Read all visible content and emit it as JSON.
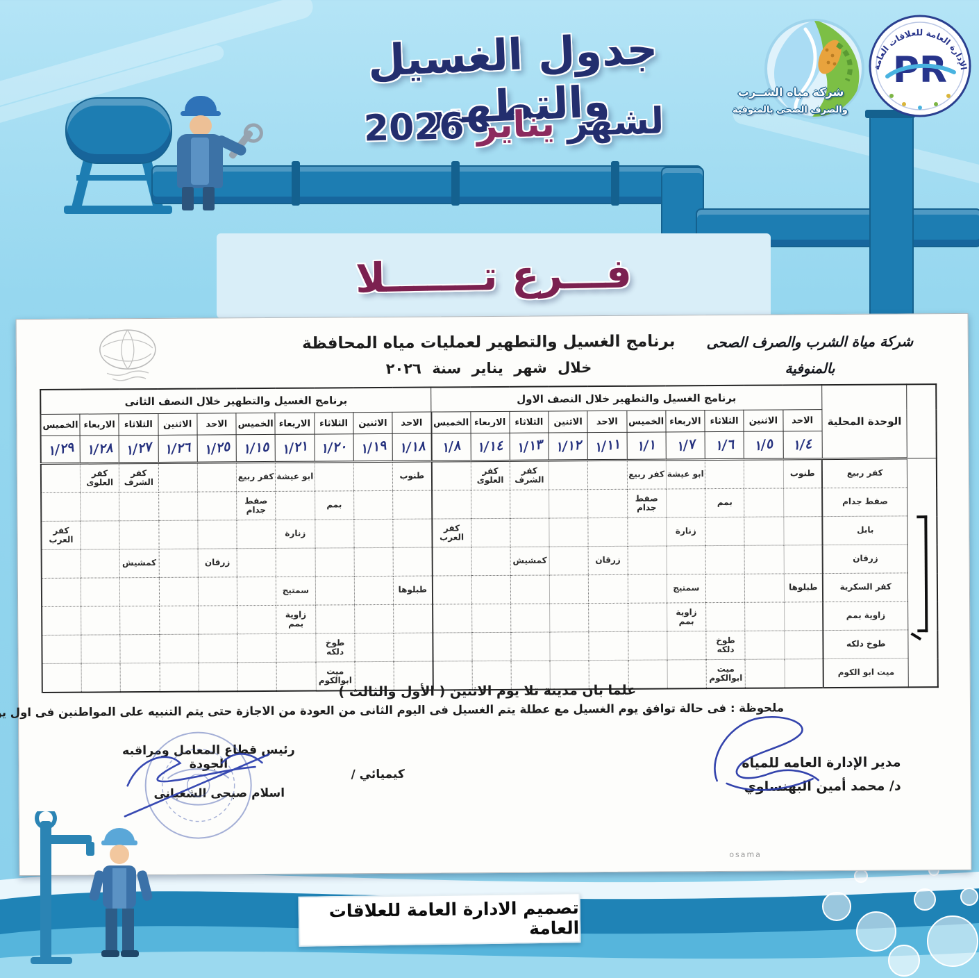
{
  "colors": {
    "accent_navy": "#232e6e",
    "accent_magenta": "#8c2a5e",
    "pipe_blue": "#1d7db2",
    "panel_blue": "#d9eef8",
    "ink_blue": "#2839a8",
    "wave_dark": "#1f83b6",
    "wave_mid": "#56b5dc"
  },
  "header": {
    "title": "جدول الغسيل والتطهير",
    "subtitle_prefix": "لشهر",
    "subtitle_month": "يناير",
    "subtitle_year": "2026"
  },
  "logos": {
    "company_line1": "شركة مياه الشــرب",
    "company_line2": "والصرف الصحى بالمنوفية",
    "pr_initials": "PR",
    "pr_ring_text": "الإدارة العامة للعلاقات العامة"
  },
  "branch": {
    "label": "فـــرع تـــــــلا"
  },
  "document": {
    "org_line1": "شركة مياة الشرب والصرف الصحى بالمنوفية",
    "org_line2": "قطاع المعامل ومراقبة الجودة",
    "title_line1": "برنامج الغسيل والتطهير لعمليات مياه المحافظة",
    "title_line2": "خلال شهر يناير سنة ٢٠٢٦",
    "table": {
      "unit_header": "الوحدة المحلية",
      "half1_title": "برنامج الغسيل والتطهير خلال النصف الاول",
      "half2_title": "برنامج الغسيل والتطهير خلال النصف الثانى",
      "day_names": [
        "الاحد",
        "الاثنين",
        "الثلاثاء",
        "الاربعاء",
        "الخميس"
      ],
      "half1_dates": [
        "١/٤",
        "١/٥",
        "١/٦",
        "١/٧",
        "١/١",
        "١/١١",
        "١/١٢",
        "١/١٣",
        "١/١٤",
        "١/٨"
      ],
      "half2_dates": [
        "١/١٨",
        "١/١٩",
        "١/٢٠",
        "١/٢١",
        "١/١٥",
        "١/٢٥",
        "١/٢٦",
        "١/٢٧",
        "١/٢٨",
        "١/٢٩"
      ],
      "rows": [
        {
          "unit": "كفر ربيع",
          "cells": {
            "1": "طنوب",
            "4": "ابو عيشة",
            "5": "كفر ربيع",
            "8": "كفر الشرف",
            "9": "كفر العلوى"
          }
        },
        {
          "unit": "صفط جدام",
          "cells": {
            "3": "بمم",
            "5": "صفط جدام"
          }
        },
        {
          "unit": "بابل",
          "cells": {
            "4": "زنارة",
            "10": "كفر العرب"
          }
        },
        {
          "unit": "زرقان",
          "cells": {
            "6": "زرقان",
            "8": "كمشيش"
          }
        },
        {
          "unit": "كفر السكرية",
          "cells": {
            "1": "طبلوها",
            "4": "سمتيج"
          }
        },
        {
          "unit": "زاوية بمم",
          "cells": {
            "4": "زاوية بمم"
          }
        },
        {
          "unit": "طوخ دلكه",
          "cells": {
            "3": "طوخ دلكه"
          }
        },
        {
          "unit": "ميت ابو الكوم",
          "cells": {
            "3": "ميت ابوالكوم"
          }
        }
      ]
    },
    "note_bold": "علما بان مدينة تلا يوم الاثنين ( الأول والثالث )",
    "note": "ملحوظة : فى حالة توافق يوم الغسيل مع عطلة يتم الغسيل فى اليوم الثانى من العودة من الاجازة حتى يتم التنبيه على المواطنين فى اول يوم من العودة بعد الاجازة",
    "sign_right_title": "مدير الإدارة العامه للمياه",
    "sign_right_name": "د/ محمد أمين البهنساوي",
    "sign_left_title": "رئيس قطاع المعامل ومراقبه الجودة",
    "sign_left_label": "كيميائي /",
    "sign_left_name": "اسلام صبحى الشعبانى",
    "watermark": "osama"
  },
  "footer": {
    "credit": "تصميم الادارة العامة للعلاقات العامة"
  }
}
